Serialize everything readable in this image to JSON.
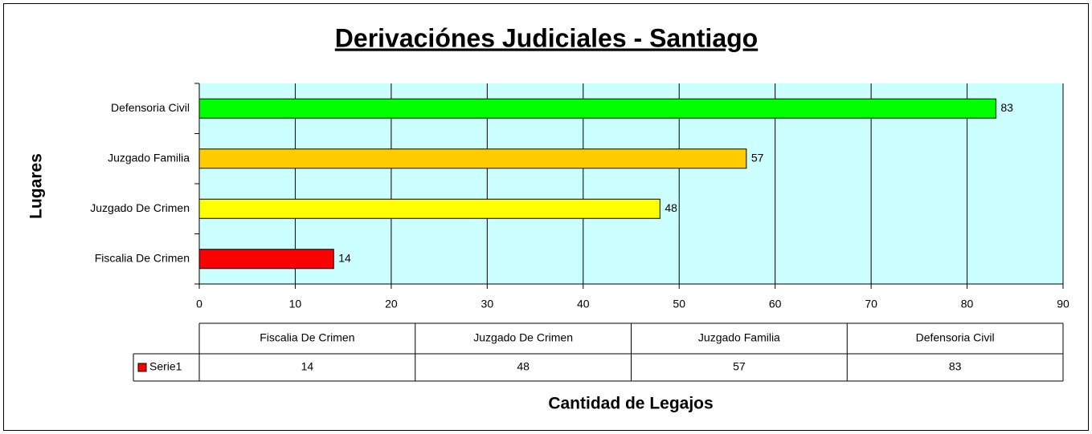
{
  "chart_data": {
    "type": "bar",
    "orientation": "horizontal",
    "title": "Derivaciónes Judiciales - Santiago",
    "x_label": "Cantidad de Legajos",
    "y_label": "Lugares",
    "categories": [
      "Fiscalia De Crimen",
      "Juzgado De Crimen",
      "Juzgado Familia",
      "Defensoria Civil"
    ],
    "series": [
      {
        "name": "Serie1",
        "color": "#ff0000",
        "point_colors": [
          "#ff0000",
          "#ffff00",
          "#ffcc00",
          "#00ff00"
        ],
        "values": [
          14,
          48,
          57,
          83
        ]
      }
    ],
    "xlim": [
      0,
      90
    ],
    "xticks": [
      0,
      10,
      20,
      30,
      40,
      50,
      60,
      70,
      80,
      90
    ],
    "grid": true,
    "plot_background": "#ccffff",
    "data_table": true
  }
}
